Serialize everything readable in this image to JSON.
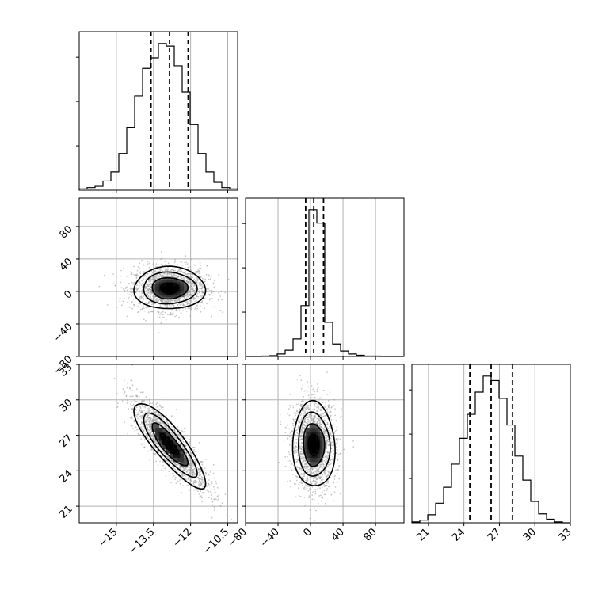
{
  "chart_data": {
    "type": "corner",
    "parameters": [
      {
        "name": "",
        "range": [
          -16.5,
          -10.1
        ],
        "ticks": [
          -15.0,
          -13.5,
          -12.0,
          -10.5
        ],
        "quantiles": [
          -13.6,
          -12.85,
          -12.1
        ],
        "center": -12.85,
        "sigma": 0.72
      },
      {
        "name": "",
        "range": [
          -80,
          115
        ],
        "ticks": [
          -80,
          -40,
          0,
          40,
          80
        ],
        "quantiles": [
          -6,
          4,
          16
        ],
        "center": 4,
        "sigma": 13
      },
      {
        "name": "",
        "range": [
          19.6,
          33.0
        ],
        "ticks": [
          21,
          24,
          27,
          30,
          33
        ],
        "quantiles": [
          24.5,
          26.3,
          28.1
        ],
        "center": 26.2,
        "sigma": 1.8
      }
    ],
    "histograms": [
      {
        "param": 0,
        "edges": [
          -16.5,
          -16.18,
          -15.86,
          -15.54,
          -15.22,
          -14.9,
          -14.58,
          -14.26,
          -13.94,
          -13.62,
          -13.3,
          -12.98,
          -12.66,
          -12.34,
          -12.02,
          -11.7,
          -11.38,
          -11.06,
          -10.74,
          -10.42,
          -10.1
        ],
        "counts": [
          1,
          2,
          3,
          7,
          14,
          28,
          48,
          72,
          93,
          101,
          112,
          110,
          95,
          75,
          50,
          28,
          14,
          6,
          2,
          1
        ]
      },
      {
        "param": 1,
        "edges": [
          -80,
          -70.25,
          -60.5,
          -50.75,
          -41,
          -31.25,
          -21.5,
          -11.75,
          -2,
          7.75,
          17.5,
          27.25,
          37,
          46.75,
          56.5,
          66.25,
          76,
          85.75,
          95.5,
          105.25,
          115
        ],
        "counts": [
          0,
          0,
          1,
          2,
          6,
          15,
          42,
          122,
          352,
          320,
          82,
          30,
          13,
          6,
          3,
          1,
          1,
          0,
          0,
          0
        ]
      },
      {
        "param": 2,
        "edges": [
          19.6,
          20.27,
          20.94,
          21.61,
          22.28,
          22.95,
          23.62,
          24.29,
          24.96,
          25.63,
          26.3,
          26.97,
          27.64,
          28.31,
          28.98,
          29.65,
          30.32,
          30.99,
          31.66,
          32.33,
          33.0
        ],
        "counts": [
          1,
          3,
          9,
          22,
          40,
          66,
          95,
          122,
          147,
          165,
          160,
          140,
          110,
          75,
          48,
          24,
          10,
          4,
          1,
          0
        ]
      }
    ],
    "pairs": [
      {
        "x": 0,
        "y": 1,
        "correlation": 0.0
      },
      {
        "x": 0,
        "y": 2,
        "correlation": -0.85
      },
      {
        "x": 1,
        "y": 2,
        "correlation": -0.05
      }
    ],
    "contour_levels": [
      0.5,
      1.0,
      1.5,
      2.0
    ],
    "scatter_points": 1800,
    "grid": true,
    "colors": {
      "line": "#000000",
      "scatter": "#9a9a9a",
      "grid": "#b0b0b0",
      "frame": "#000000"
    }
  }
}
